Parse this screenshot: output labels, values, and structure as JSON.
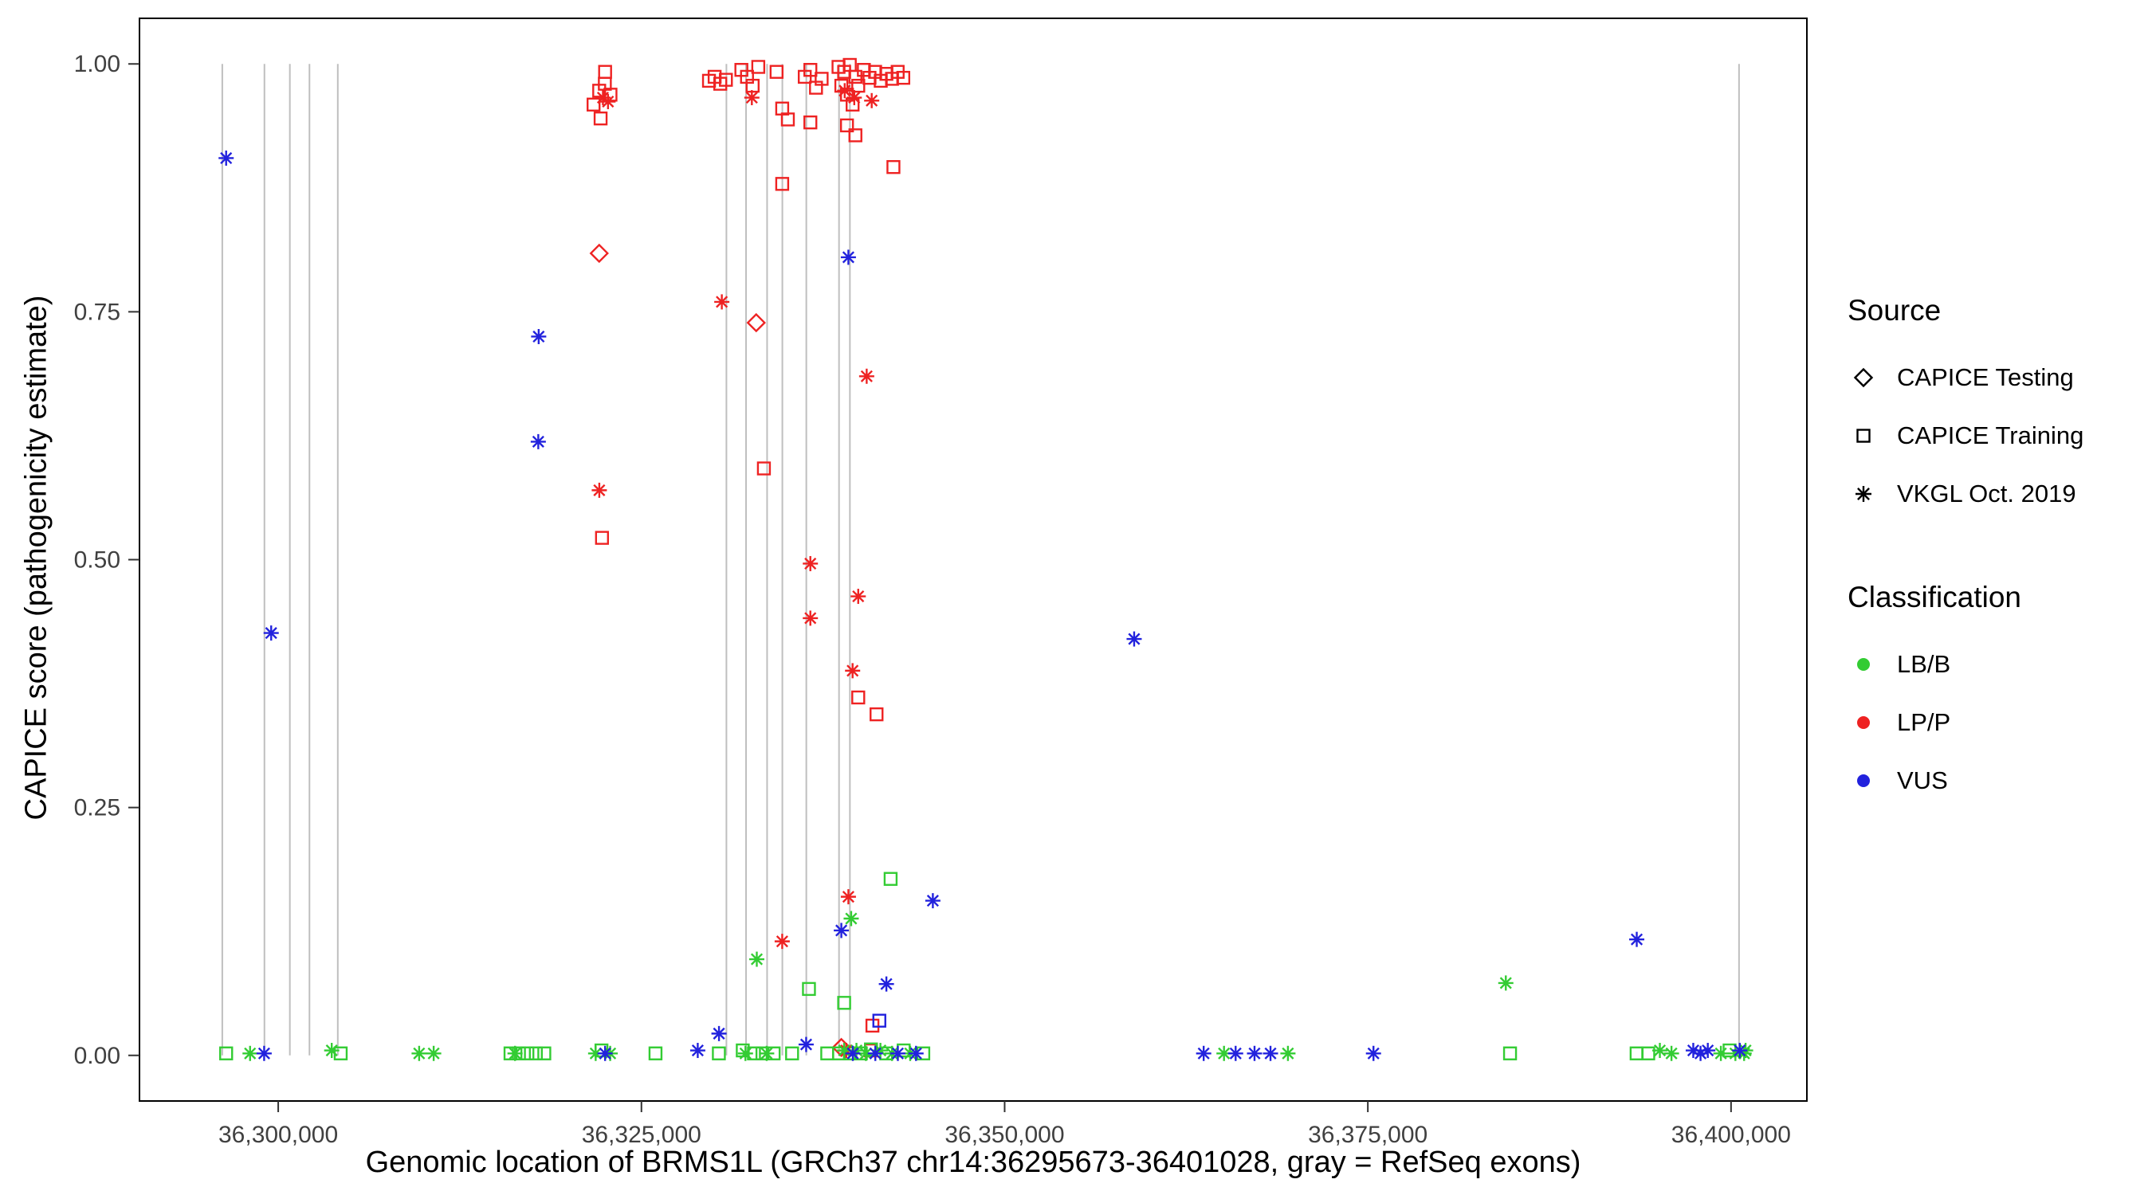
{
  "chart_data": {
    "type": "scatter",
    "xlabel": "Genomic location of BRMS1L (GRCh37 chr14:36295673-36401028, gray = RefSeq exons)",
    "ylabel": "CAPICE score (pathogenicity estimate)",
    "xlim": [
      36290450,
      36405220
    ],
    "ylim": [
      -0.046,
      1.046
    ],
    "grid": false,
    "x_ticks": [
      {
        "value": 36300000,
        "label": "36,300,000"
      },
      {
        "value": 36325000,
        "label": "36,325,000"
      },
      {
        "value": 36350000,
        "label": "36,350,000"
      },
      {
        "value": 36375000,
        "label": "36,375,000"
      },
      {
        "value": 36400000,
        "label": "36,400,000"
      }
    ],
    "y_ticks": [
      {
        "value": 0.0,
        "label": "0.00"
      },
      {
        "value": 0.25,
        "label": "0.25"
      },
      {
        "value": 0.5,
        "label": "0.50"
      },
      {
        "value": 0.75,
        "label": "0.75"
      },
      {
        "value": 1.0,
        "label": "1.00"
      }
    ],
    "exon_color": "#BFBFBF",
    "exon_lines": [
      36296150,
      36299050,
      36300800,
      36302150,
      36304100,
      36330850,
      36332200,
      36333650,
      36334700,
      36336350,
      36338600,
      36339350,
      36400550
    ],
    "colors": {
      "LB/B": "#33CC33",
      "LP/P": "#EE2222",
      "VUS": "#2222DD"
    },
    "legend": {
      "position": "right",
      "source": {
        "title": "Source",
        "items": [
          {
            "label": "CAPICE Testing",
            "marker": "diamond"
          },
          {
            "label": "CAPICE Training",
            "marker": "square"
          },
          {
            "label": "VKGL Oct. 2019",
            "marker": "asterisk"
          }
        ]
      },
      "classification": {
        "title": "Classification",
        "items": [
          {
            "label": "LB/B",
            "color": "#33CC33"
          },
          {
            "label": "LP/P",
            "color": "#EE2222"
          },
          {
            "label": "VUS",
            "color": "#2222DD"
          }
        ]
      }
    },
    "series": [
      {
        "name": "CAPICE Testing LP/P",
        "source": "CAPICE Testing",
        "classification": "LP/P",
        "marker": "diamond",
        "color": "#EE2222",
        "points": [
          [
            36322093,
            0.809
          ],
          [
            36332900,
            0.739
          ],
          [
            36338760,
            0.008
          ]
        ]
      },
      {
        "name": "CAPICE Training LP/P",
        "source": "CAPICE Training",
        "classification": "LP/P",
        "marker": "square",
        "color": "#EE2222",
        "points": [
          [
            36321705,
            0.959
          ],
          [
            36322093,
            0.973
          ],
          [
            36322481,
            0.98
          ],
          [
            36322869,
            0.969
          ],
          [
            36322190,
            0.945
          ],
          [
            36322500,
            0.992
          ],
          [
            36329651,
            0.983
          ],
          [
            36330039,
            0.987
          ],
          [
            36330427,
            0.98
          ],
          [
            36330814,
            0.984
          ],
          [
            36331880,
            0.994
          ],
          [
            36332268,
            0.987
          ],
          [
            36332655,
            0.978
          ],
          [
            36333043,
            0.997
          ],
          [
            36334302,
            0.992
          ],
          [
            36334690,
            0.955
          ],
          [
            36335078,
            0.944
          ],
          [
            36334690,
            0.879
          ],
          [
            36336241,
            0.987
          ],
          [
            36336628,
            0.994
          ],
          [
            36337016,
            0.976
          ],
          [
            36336628,
            0.941
          ],
          [
            36337404,
            0.985
          ],
          [
            36338566,
            0.997
          ],
          [
            36338954,
            0.992
          ],
          [
            36339341,
            0.999
          ],
          [
            36339729,
            0.987
          ],
          [
            36338760,
            0.978
          ],
          [
            36339148,
            0.969
          ],
          [
            36339535,
            0.959
          ],
          [
            36339923,
            0.978
          ],
          [
            36340311,
            0.994
          ],
          [
            36340698,
            0.986
          ],
          [
            36341086,
            0.992
          ],
          [
            36341473,
            0.983
          ],
          [
            36341861,
            0.99
          ],
          [
            36342249,
            0.985
          ],
          [
            36342637,
            0.992
          ],
          [
            36343024,
            0.986
          ],
          [
            36339148,
            0.938
          ],
          [
            36339729,
            0.928
          ],
          [
            36342345,
            0.896
          ],
          [
            36333430,
            0.592
          ],
          [
            36322287,
            0.522
          ],
          [
            36339923,
            0.361
          ],
          [
            36341183,
            0.344
          ],
          [
            36340900,
            0.03
          ],
          [
            36340800,
            0.005
          ]
        ]
      },
      {
        "name": "CAPICE Training LB/B",
        "source": "CAPICE Training",
        "classification": "LB/B",
        "marker": "square",
        "color": "#33CC33",
        "points": [
          [
            36296415,
            0.002
          ],
          [
            36304300,
            0.002
          ],
          [
            36315989,
            0.002
          ],
          [
            36316570,
            0.002
          ],
          [
            36317151,
            0.002
          ],
          [
            36317732,
            0.002
          ],
          [
            36318314,
            0.002
          ],
          [
            36322250,
            0.005
          ],
          [
            36325969,
            0.002
          ],
          [
            36330330,
            0.002
          ],
          [
            36331975,
            0.005
          ],
          [
            36332745,
            0.002
          ],
          [
            36333330,
            0.002
          ],
          [
            36334100,
            0.002
          ],
          [
            36335369,
            0.002
          ],
          [
            36337790,
            0.002
          ],
          [
            36336531,
            0.067
          ],
          [
            36338954,
            0.053
          ],
          [
            36342152,
            0.178
          ],
          [
            36338600,
            0.002
          ],
          [
            36339350,
            0.002
          ],
          [
            36340100,
            0.002
          ],
          [
            36340800,
            0.006
          ],
          [
            36341850,
            0.002
          ],
          [
            36343050,
            0.005
          ],
          [
            36344400,
            0.002
          ],
          [
            36384788,
            0.002
          ],
          [
            36393500,
            0.002
          ],
          [
            36394300,
            0.002
          ],
          [
            36399900,
            0.005
          ]
        ]
      },
      {
        "name": "CAPICE Training VUS",
        "source": "CAPICE Training",
        "classification": "VUS",
        "marker": "square",
        "color": "#2222DD",
        "points": [
          [
            36341376,
            0.035
          ]
        ]
      },
      {
        "name": "VKGL Oct. 2019 LP/P",
        "source": "VKGL Oct. 2019",
        "classification": "LP/P",
        "marker": "asterisk",
        "color": "#EE2222",
        "points": [
          [
            36322350,
            0.966
          ],
          [
            36322700,
            0.962
          ],
          [
            36332600,
            0.966
          ],
          [
            36338990,
            0.973
          ],
          [
            36339650,
            0.966
          ],
          [
            36340850,
            0.963
          ],
          [
            36330533,
            0.76
          ],
          [
            36340504,
            0.685
          ],
          [
            36322100,
            0.57
          ],
          [
            36336628,
            0.496
          ],
          [
            36339923,
            0.463
          ],
          [
            36336628,
            0.441
          ],
          [
            36339535,
            0.388
          ],
          [
            36339245,
            0.16
          ],
          [
            36334690,
            0.115
          ],
          [
            36339100,
            0.005
          ]
        ]
      },
      {
        "name": "VKGL Oct. 2019 LB/B",
        "source": "VKGL Oct. 2019",
        "classification": "LB/B",
        "marker": "asterisk",
        "color": "#33CC33",
        "points": [
          [
            36298062,
            0.002
          ],
          [
            36303682,
            0.005
          ],
          [
            36309700,
            0.002
          ],
          [
            36310700,
            0.002
          ],
          [
            36316300,
            0.002
          ],
          [
            36321850,
            0.002
          ],
          [
            36322850,
            0.002
          ],
          [
            36332160,
            0.002
          ],
          [
            36333620,
            0.002
          ],
          [
            36332940,
            0.097
          ],
          [
            36339438,
            0.138
          ],
          [
            36338950,
            0.005
          ],
          [
            36339800,
            0.005
          ],
          [
            36340450,
            0.002
          ],
          [
            36341450,
            0.005
          ],
          [
            36342250,
            0.002
          ],
          [
            36343500,
            0.002
          ],
          [
            36365100,
            0.002
          ],
          [
            36369500,
            0.002
          ],
          [
            36384497,
            0.073
          ],
          [
            36395100,
            0.005
          ],
          [
            36395900,
            0.002
          ],
          [
            36399300,
            0.002
          ],
          [
            36400300,
            0.002
          ],
          [
            36400900,
            0.002
          ],
          [
            36401000,
            0.005
          ]
        ]
      },
      {
        "name": "VKGL Oct. 2019 VUS",
        "source": "VKGL Oct. 2019",
        "classification": "VUS",
        "marker": "asterisk",
        "color": "#2222DD",
        "points": [
          [
            36296415,
            0.905
          ],
          [
            36299515,
            0.426
          ],
          [
            36299031,
            0.002
          ],
          [
            36317927,
            0.725
          ],
          [
            36317900,
            0.619
          ],
          [
            36322500,
            0.002
          ],
          [
            36328876,
            0.005
          ],
          [
            36330339,
            0.022
          ],
          [
            36336338,
            0.011
          ],
          [
            36339245,
            0.805
          ],
          [
            36338760,
            0.126
          ],
          [
            36339550,
            0.002
          ],
          [
            36341100,
            0.002
          ],
          [
            36341861,
            0.072
          ],
          [
            36342650,
            0.002
          ],
          [
            36343900,
            0.002
          ],
          [
            36345059,
            0.156
          ],
          [
            36358915,
            0.42
          ],
          [
            36363700,
            0.002
          ],
          [
            36365900,
            0.002
          ],
          [
            36367200,
            0.002
          ],
          [
            36368300,
            0.002
          ],
          [
            36375388,
            0.002
          ],
          [
            36393509,
            0.117
          ],
          [
            36397400,
            0.005
          ],
          [
            36397900,
            0.002
          ],
          [
            36398400,
            0.005
          ],
          [
            36400600,
            0.005
          ]
        ]
      }
    ]
  }
}
